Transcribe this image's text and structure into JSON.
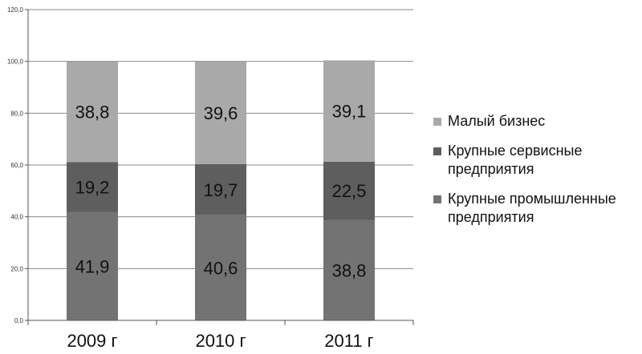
{
  "chart_data": {
    "type": "bar",
    "stacked": true,
    "categories": [
      "2009 г",
      "2010 г",
      "2011 г"
    ],
    "series": [
      {
        "name": "Крупные промышленные предприятия",
        "values": [
          41.9,
          40.6,
          38.8
        ],
        "color": "#737373"
      },
      {
        "name": "Крупные сервисные предприятия",
        "values": [
          19.2,
          19.7,
          22.5
        ],
        "color": "#5e5e5e"
      },
      {
        "name": "Малый бизнес",
        "values": [
          38.8,
          39.6,
          39.1
        ],
        "color": "#a9a9a9"
      }
    ],
    "data_labels": [
      [
        "41,9",
        "40,6",
        "38,8"
      ],
      [
        "19,2",
        "19,7",
        "22,5"
      ],
      [
        "38,8",
        "39,6",
        "39,1"
      ]
    ],
    "yticks": [
      "0,0",
      "20,0",
      "40,0",
      "60,0",
      "80,0",
      "100,0",
      "120,0"
    ],
    "ylim": [
      0,
      120
    ],
    "grid": true,
    "legend_position": "right",
    "legend": [
      {
        "label": "Малый бизнес",
        "color": "#a9a9a9"
      },
      {
        "label": "Крупные сервисные предприятия",
        "color": "#5e5e5e"
      },
      {
        "label": "Крупные промышленные предприятия",
        "color": "#737373"
      }
    ]
  }
}
